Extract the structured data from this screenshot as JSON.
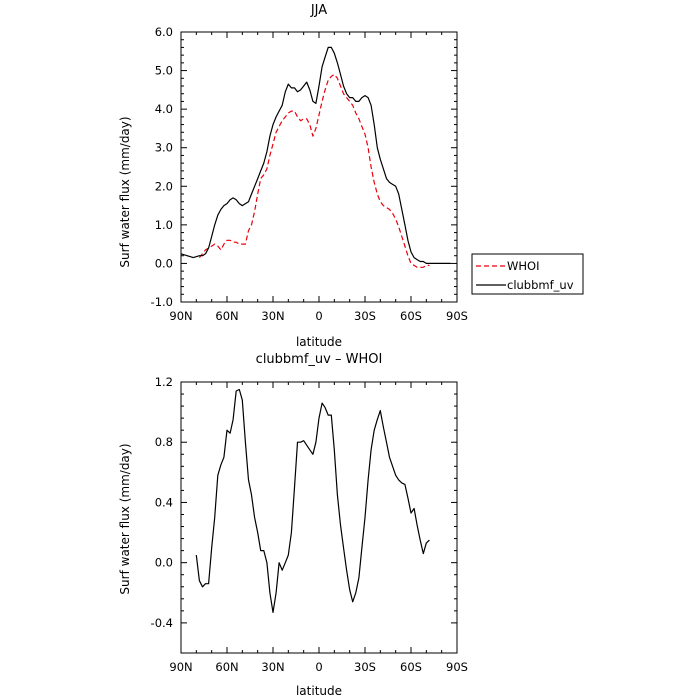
{
  "chart_data": [
    {
      "type": "line",
      "title": "JJA",
      "xlabel": "latitude",
      "ylabel": "Surf water flux (mm/day)",
      "xlim": [
        90,
        -90
      ],
      "ylim": [
        -1.0,
        6.0
      ],
      "x_ticks": [
        90,
        60,
        30,
        0,
        -30,
        -60,
        -90
      ],
      "x_tick_labels": [
        "90N",
        "60N",
        "30N",
        "0",
        "30S",
        "60S",
        "90S"
      ],
      "y_ticks": [
        -1.0,
        0.0,
        1.0,
        2.0,
        3.0,
        4.0,
        5.0,
        6.0
      ],
      "y_tick_labels": [
        "-1.0",
        "0.0",
        "1.0",
        "2.0",
        "3.0",
        "4.0",
        "5.0",
        "6.0"
      ],
      "legend": "right-bottom, outside plot",
      "series": [
        {
          "name": "WHOI",
          "color": "#e8000b",
          "dash": "dashed",
          "x": [
            78,
            74,
            70,
            68,
            66,
            64,
            62,
            60,
            58,
            56,
            54,
            52,
            50,
            48,
            46,
            44,
            42,
            40,
            38,
            36,
            34,
            32,
            30,
            28,
            26,
            24,
            22,
            20,
            18,
            16,
            14,
            12,
            10,
            8,
            6,
            4,
            2,
            0,
            -2,
            -4,
            -6,
            -8,
            -10,
            -12,
            -14,
            -16,
            -18,
            -20,
            -22,
            -24,
            -26,
            -28,
            -30,
            -32,
            -34,
            -36,
            -38,
            -40,
            -42,
            -44,
            -46,
            -48,
            -50,
            -52,
            -54,
            -56,
            -58,
            -60,
            -62,
            -64,
            -66,
            -68,
            -70,
            -72
          ],
          "y": [
            0.15,
            0.35,
            0.45,
            0.5,
            0.45,
            0.35,
            0.5,
            0.6,
            0.6,
            0.55,
            0.55,
            0.5,
            0.5,
            0.5,
            0.85,
            1.0,
            1.35,
            1.8,
            2.2,
            2.3,
            2.45,
            2.8,
            3.1,
            3.4,
            3.55,
            3.7,
            3.8,
            3.9,
            3.95,
            3.95,
            3.8,
            3.7,
            3.75,
            3.75,
            3.6,
            3.3,
            3.5,
            3.85,
            4.2,
            4.5,
            4.75,
            4.85,
            4.9,
            4.8,
            4.6,
            4.4,
            4.3,
            4.2,
            4.1,
            3.9,
            3.75,
            3.55,
            3.35,
            3.0,
            2.5,
            2.1,
            1.8,
            1.6,
            1.5,
            1.45,
            1.4,
            1.3,
            1.15,
            0.95,
            0.7,
            0.45,
            0.2,
            0.0,
            -0.05,
            -0.1,
            -0.1,
            -0.1,
            -0.05,
            -0.05
          ]
        },
        {
          "name": "clubbmf_uv",
          "color": "#000000",
          "dash": "solid",
          "x": [
            90,
            86,
            82,
            78,
            76,
            74,
            72,
            70,
            68,
            66,
            64,
            62,
            60,
            58,
            56,
            54,
            52,
            50,
            48,
            46,
            44,
            42,
            40,
            38,
            36,
            34,
            32,
            30,
            28,
            26,
            24,
            22,
            20,
            18,
            16,
            14,
            12,
            10,
            8,
            6,
            4,
            2,
            0,
            -2,
            -4,
            -6,
            -8,
            -10,
            -12,
            -14,
            -16,
            -18,
            -20,
            -22,
            -24,
            -26,
            -28,
            -30,
            -32,
            -34,
            -36,
            -38,
            -40,
            -42,
            -44,
            -46,
            -48,
            -50,
            -52,
            -54,
            -56,
            -58,
            -60,
            -62,
            -64,
            -66,
            -68,
            -70,
            -72,
            -74,
            -76,
            -78,
            -82,
            -86
          ],
          "y": [
            0.25,
            0.2,
            0.15,
            0.2,
            0.2,
            0.25,
            0.4,
            0.7,
            1.0,
            1.25,
            1.4,
            1.5,
            1.55,
            1.65,
            1.7,
            1.65,
            1.55,
            1.5,
            1.55,
            1.6,
            1.8,
            2.0,
            2.2,
            2.4,
            2.6,
            2.9,
            3.3,
            3.6,
            3.8,
            3.95,
            4.1,
            4.45,
            4.65,
            4.55,
            4.55,
            4.45,
            4.5,
            4.6,
            4.7,
            4.5,
            4.2,
            4.15,
            4.6,
            5.1,
            5.35,
            5.6,
            5.6,
            5.45,
            5.2,
            4.9,
            4.6,
            4.4,
            4.3,
            4.3,
            4.2,
            4.2,
            4.3,
            4.35,
            4.3,
            4.1,
            3.6,
            3.0,
            2.7,
            2.45,
            2.2,
            2.1,
            2.05,
            2.0,
            1.8,
            1.4,
            1.0,
            0.6,
            0.3,
            0.15,
            0.1,
            0.05,
            0.05,
            0.0,
            0.0,
            0.0,
            0.0,
            0.0,
            0.0,
            0.0
          ]
        }
      ]
    },
    {
      "type": "line",
      "title": "clubbmf_uv – WHOI",
      "xlabel": "latitude",
      "ylabel": "Surf water flux (mm/day)",
      "xlim": [
        90,
        -90
      ],
      "ylim": [
        -0.6,
        1.2
      ],
      "x_ticks": [
        90,
        60,
        30,
        0,
        -30,
        -60,
        -90
      ],
      "x_tick_labels": [
        "90N",
        "60N",
        "30N",
        "0",
        "30S",
        "60S",
        "90S"
      ],
      "y_ticks": [
        -0.4,
        0.0,
        0.4,
        0.8,
        1.2
      ],
      "y_tick_labels": [
        "-0.4",
        "0.0",
        "0.4",
        "0.8",
        "1.2"
      ],
      "series": [
        {
          "color": "#000000",
          "dash": "solid",
          "x": [
            80,
            78,
            76,
            74,
            72,
            70,
            68,
            66,
            64,
            62,
            60,
            58,
            56,
            54,
            52,
            50,
            48,
            46,
            44,
            42,
            40,
            38,
            36,
            34,
            32,
            30,
            28,
            26,
            24,
            22,
            20,
            18,
            16,
            14,
            12,
            10,
            8,
            6,
            4,
            2,
            0,
            -2,
            -4,
            -6,
            -8,
            -10,
            -12,
            -14,
            -16,
            -18,
            -20,
            -22,
            -24,
            -26,
            -28,
            -30,
            -32,
            -34,
            -36,
            -38,
            -40,
            -42,
            -44,
            -46,
            -48,
            -50,
            -52,
            -54,
            -56,
            -58,
            -60,
            -62,
            -64,
            -66,
            -68,
            -70,
            -72
          ],
          "y": [
            0.05,
            -0.12,
            -0.16,
            -0.14,
            -0.14,
            0.1,
            0.3,
            0.58,
            0.65,
            0.7,
            0.88,
            0.86,
            0.95,
            1.14,
            1.15,
            1.08,
            0.8,
            0.55,
            0.45,
            0.3,
            0.2,
            0.08,
            0.08,
            0.0,
            -0.2,
            -0.33,
            -0.2,
            0.0,
            -0.05,
            0.0,
            0.05,
            0.2,
            0.5,
            0.8,
            0.8,
            0.81,
            0.78,
            0.75,
            0.72,
            0.8,
            0.96,
            1.06,
            1.03,
            0.98,
            0.98,
            0.75,
            0.45,
            0.25,
            0.1,
            -0.05,
            -0.18,
            -0.26,
            -0.2,
            -0.1,
            0.1,
            0.3,
            0.55,
            0.75,
            0.88,
            0.95,
            1.01,
            0.9,
            0.8,
            0.7,
            0.64,
            0.58,
            0.55,
            0.53,
            0.52,
            0.43,
            0.33,
            0.36,
            0.25,
            0.15,
            0.06,
            0.13,
            0.15
          ]
        }
      ]
    }
  ]
}
